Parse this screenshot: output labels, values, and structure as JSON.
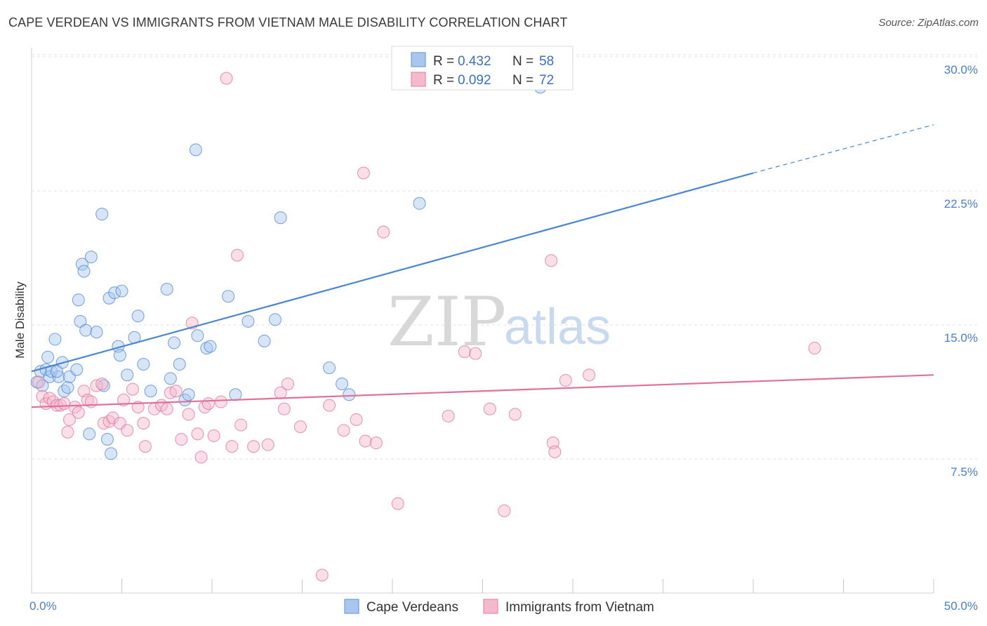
{
  "header": {
    "title": "CAPE VERDEAN VS IMMIGRANTS FROM VIETNAM MALE DISABILITY CORRELATION CHART",
    "source": "Source: ZipAtlas.com"
  },
  "watermark": {
    "zip": "ZIP",
    "atlas": "atlas"
  },
  "legend_top": {
    "items": [
      {
        "r_label": "R =",
        "r_value": "0.432",
        "n_label": "N =",
        "n_value": "58",
        "color": "#a8c6ee"
      },
      {
        "r_label": "R =",
        "r_value": "0.092",
        "n_label": "N =",
        "n_value": "72",
        "color": "#f5b9cc"
      }
    ]
  },
  "legend_bottom": {
    "items": [
      {
        "label": "Cape Verdeans",
        "color": "#a8c6ee"
      },
      {
        "label": "Immigrants from Vietnam",
        "color": "#f5b9cc"
      }
    ]
  },
  "chart_data": {
    "type": "scatter",
    "ylabel": "Male Disability",
    "xlim": [
      0,
      50
    ],
    "ylim": [
      0,
      30
    ],
    "y_ticks": [
      {
        "value": 7.5,
        "label": "7.5%"
      },
      {
        "value": 15,
        "label": "15.0%"
      },
      {
        "value": 22.5,
        "label": "22.5%"
      },
      {
        "value": 30,
        "label": "30.0%"
      }
    ],
    "x_tick_labels": {
      "min": "0.0%",
      "max": "50.0%"
    },
    "x_minor_ticks": [
      0,
      5,
      10,
      15,
      20,
      25,
      30,
      35,
      40,
      45,
      50
    ],
    "grid": true,
    "series": [
      {
        "name": "Cape Verdeans",
        "color": "#4a86d0",
        "fill": "#a8c6ee",
        "points": [
          [
            0.3,
            11.8
          ],
          [
            0.5,
            12.4
          ],
          [
            0.6,
            11.6
          ],
          [
            0.8,
            12.5
          ],
          [
            0.9,
            13.2
          ],
          [
            1.0,
            12.1
          ],
          [
            1.1,
            12.4
          ],
          [
            1.3,
            14.2
          ],
          [
            1.5,
            12.1
          ],
          [
            1.7,
            12.9
          ],
          [
            1.8,
            11.3
          ],
          [
            2.0,
            11.5
          ],
          [
            2.1,
            12.1
          ],
          [
            2.5,
            12.5
          ],
          [
            2.6,
            16.4
          ],
          [
            2.7,
            15.2
          ],
          [
            2.8,
            18.4
          ],
          [
            2.9,
            18.0
          ],
          [
            3.0,
            14.7
          ],
          [
            3.2,
            8.9
          ],
          [
            3.3,
            18.8
          ],
          [
            3.6,
            14.6
          ],
          [
            3.9,
            21.2
          ],
          [
            4.0,
            11.6
          ],
          [
            4.2,
            8.6
          ],
          [
            4.3,
            16.5
          ],
          [
            4.4,
            7.8
          ],
          [
            4.6,
            16.8
          ],
          [
            4.8,
            13.8
          ],
          [
            4.9,
            13.3
          ],
          [
            5.0,
            16.9
          ],
          [
            5.3,
            12.2
          ],
          [
            5.7,
            14.3
          ],
          [
            5.9,
            15.5
          ],
          [
            6.2,
            12.8
          ],
          [
            6.6,
            11.3
          ],
          [
            7.5,
            17.0
          ],
          [
            7.7,
            12.0
          ],
          [
            7.9,
            14.0
          ],
          [
            8.2,
            12.8
          ],
          [
            8.5,
            10.8
          ],
          [
            8.7,
            11.1
          ],
          [
            9.1,
            24.8
          ],
          [
            9.2,
            14.4
          ],
          [
            9.7,
            13.7
          ],
          [
            9.9,
            13.8
          ],
          [
            10.9,
            16.6
          ],
          [
            11.3,
            11.1
          ],
          [
            12.0,
            15.2
          ],
          [
            12.9,
            14.1
          ],
          [
            13.5,
            15.3
          ],
          [
            13.8,
            21.0
          ],
          [
            16.5,
            12.6
          ],
          [
            17.2,
            11.7
          ],
          [
            17.6,
            11.1
          ],
          [
            21.5,
            21.8
          ],
          [
            28.2,
            28.3
          ],
          [
            1.4,
            12.4
          ]
        ],
        "trend": {
          "x1": 0,
          "y1": 12.4,
          "x2": 40,
          "y2": 23.5,
          "dash_to_x": 50,
          "dash_to_y": 26.2
        }
      },
      {
        "name": "Immigrants from Vietnam",
        "color": "#e0719a",
        "fill": "#f5b9cc",
        "points": [
          [
            0.4,
            11.8
          ],
          [
            0.6,
            11.0
          ],
          [
            0.8,
            10.6
          ],
          [
            1.0,
            10.9
          ],
          [
            1.2,
            10.7
          ],
          [
            1.4,
            10.5
          ],
          [
            1.6,
            10.5
          ],
          [
            1.8,
            10.6
          ],
          [
            2.0,
            9.0
          ],
          [
            2.1,
            9.7
          ],
          [
            2.4,
            10.4
          ],
          [
            2.6,
            10.1
          ],
          [
            2.9,
            11.3
          ],
          [
            3.1,
            10.8
          ],
          [
            3.3,
            10.7
          ],
          [
            3.6,
            11.6
          ],
          [
            4.0,
            9.5
          ],
          [
            4.3,
            9.6
          ],
          [
            4.5,
            9.8
          ],
          [
            4.9,
            9.5
          ],
          [
            5.1,
            10.8
          ],
          [
            5.3,
            9.1
          ],
          [
            5.6,
            11.4
          ],
          [
            5.9,
            10.4
          ],
          [
            6.2,
            9.5
          ],
          [
            6.3,
            8.2
          ],
          [
            6.8,
            10.3
          ],
          [
            7.2,
            10.5
          ],
          [
            7.5,
            10.3
          ],
          [
            7.7,
            11.2
          ],
          [
            8.0,
            11.3
          ],
          [
            8.3,
            8.6
          ],
          [
            8.7,
            10.0
          ],
          [
            8.9,
            15.1
          ],
          [
            9.2,
            8.9
          ],
          [
            9.4,
            7.6
          ],
          [
            9.6,
            10.4
          ],
          [
            9.8,
            10.6
          ],
          [
            10.1,
            8.8
          ],
          [
            10.5,
            10.7
          ],
          [
            10.8,
            28.8
          ],
          [
            11.1,
            8.2
          ],
          [
            11.4,
            18.9
          ],
          [
            11.6,
            9.4
          ],
          [
            12.3,
            8.2
          ],
          [
            13.1,
            8.3
          ],
          [
            13.8,
            11.2
          ],
          [
            14.0,
            10.3
          ],
          [
            14.2,
            11.7
          ],
          [
            14.9,
            9.3
          ],
          [
            16.1,
            1.0
          ],
          [
            16.5,
            10.5
          ],
          [
            17.3,
            9.1
          ],
          [
            18.0,
            9.7
          ],
          [
            18.4,
            23.5
          ],
          [
            18.5,
            8.5
          ],
          [
            19.1,
            8.4
          ],
          [
            19.5,
            20.2
          ],
          [
            20.3,
            5.0
          ],
          [
            23.1,
            9.9
          ],
          [
            24.0,
            13.5
          ],
          [
            24.6,
            13.4
          ],
          [
            25.4,
            10.3
          ],
          [
            26.2,
            4.6
          ],
          [
            26.8,
            10.0
          ],
          [
            28.8,
            18.6
          ],
          [
            28.9,
            8.4
          ],
          [
            29.0,
            7.9
          ],
          [
            29.6,
            11.9
          ],
          [
            30.9,
            12.2
          ],
          [
            43.4,
            13.7
          ],
          [
            3.9,
            11.7
          ]
        ],
        "trend": {
          "x1": 0,
          "y1": 10.4,
          "x2": 50,
          "y2": 12.2
        }
      }
    ]
  }
}
